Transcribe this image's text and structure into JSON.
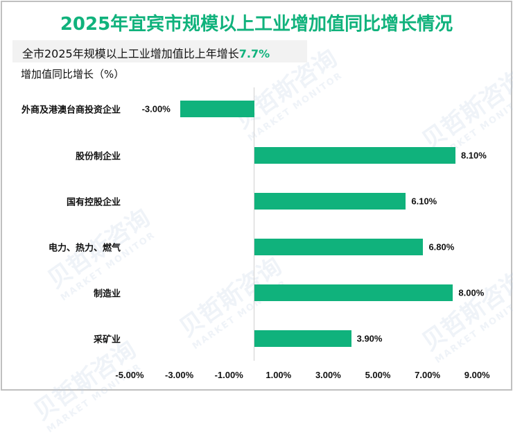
{
  "title": "2025年宜宾市规模以上工业增加值同比增长情况",
  "subtitle": {
    "text": "全市2025年规模以上工业增加值比上年增长",
    "highlight": "7.7%"
  },
  "y_axis_label": "增加值同比增长（%）",
  "colors": {
    "bar": "#10b27c",
    "title": "#10b27c",
    "subtitle_bg": "#f2f2f2",
    "border": "#bfbfbf"
  },
  "watermark": {
    "cn": "贝哲斯咨询",
    "en": "MARKET MONITOR"
  },
  "chart_data": {
    "type": "bar",
    "orientation": "horizontal",
    "title": "2025年宜宾市规模以上工业增加值同比增长情况",
    "subtitle": "全市2025年规模以上工业增加值比上年增长7.7%",
    "xlabel": "",
    "ylabel": "增加值同比增长（%）",
    "categories": [
      "外商及港澳台商投资企业",
      "股份制企业",
      "国有控股企业",
      "电力、热力、燃气",
      "制造业",
      "采矿业"
    ],
    "values": [
      -3.0,
      8.1,
      6.1,
      6.8,
      8.0,
      3.9
    ],
    "value_labels": [
      "-3.00%",
      "8.10%",
      "6.10%",
      "6.80%",
      "8.00%",
      "3.90%"
    ],
    "x_ticks": [
      "-5.00%",
      "-3.00%",
      "-1.00%",
      "1.00%",
      "3.00%",
      "5.00%",
      "7.00%",
      "9.00%"
    ],
    "x_tick_values": [
      -5,
      -3,
      -1,
      1,
      3,
      5,
      7,
      9
    ],
    "xlim": [
      -6,
      10
    ],
    "grid": false,
    "legend": null
  }
}
